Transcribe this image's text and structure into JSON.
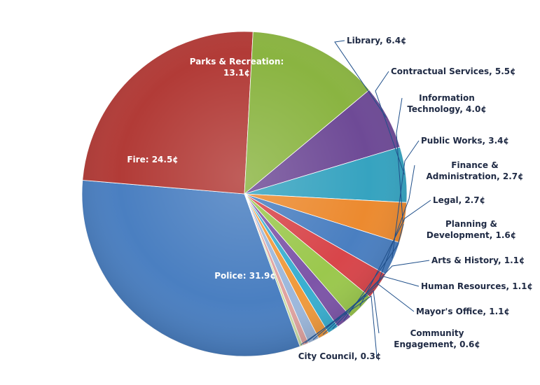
{
  "chart_data": {
    "type": "pie",
    "title": "",
    "unit": "¢",
    "slices": [
      {
        "label": "Police",
        "value": 31.9,
        "color": "#4a7fc1",
        "display": "Police: 31.9¢"
      },
      {
        "label": "Fire",
        "value": 24.5,
        "color": "#b23b37",
        "display": "Fire: 24.5¢"
      },
      {
        "label": "Parks & Recreation",
        "value": 13.1,
        "color": "#8ab441",
        "display": "Parks & Recreation:\n13.1¢"
      },
      {
        "label": "Library",
        "value": 6.4,
        "color": "#6e4a96",
        "display": "Library, 6.4¢"
      },
      {
        "label": "Contractual Services",
        "value": 5.5,
        "color": "#36a3c0",
        "display": "Contractual Services, 5.5¢"
      },
      {
        "label": "Information Technology",
        "value": 4.0,
        "color": "#ec8a2f",
        "display": "Information\nTechnology, 4.0¢"
      },
      {
        "label": "Public Works",
        "value": 3.4,
        "color": "#4a7fc1",
        "display": "Public Works, 3.4¢"
      },
      {
        "label": "Finance & Administration",
        "value": 2.7,
        "color": "#d8454a",
        "display": "Finance &\nAdministration, 2.7¢"
      },
      {
        "label": "Legal",
        "value": 2.7,
        "color": "#9bc84d",
        "display": "Legal, 2.7¢"
      },
      {
        "label": "Planning & Development",
        "value": 1.6,
        "color": "#7d55a8",
        "display": "Planning &\nDevelopment, 1.6¢"
      },
      {
        "label": "Arts & History",
        "value": 1.1,
        "color": "#3aafd0",
        "display": "Arts & History, 1.1¢"
      },
      {
        "label": "Human Resources",
        "value": 1.1,
        "color": "#f09a3d",
        "display": "Human Resources, 1.1¢"
      },
      {
        "label": "Mayor's Office",
        "value": 1.1,
        "color": "#9db8dc",
        "display": "Mayor's Office, 1.1¢"
      },
      {
        "label": "Community Engagement",
        "value": 0.6,
        "color": "#e0a3a0",
        "display": "Community\nEngagement, 0.6¢"
      },
      {
        "label": "City Council",
        "value": 0.3,
        "color": "#c9dca5",
        "display": "City Council, 0.3¢"
      }
    ],
    "legend": "none"
  }
}
